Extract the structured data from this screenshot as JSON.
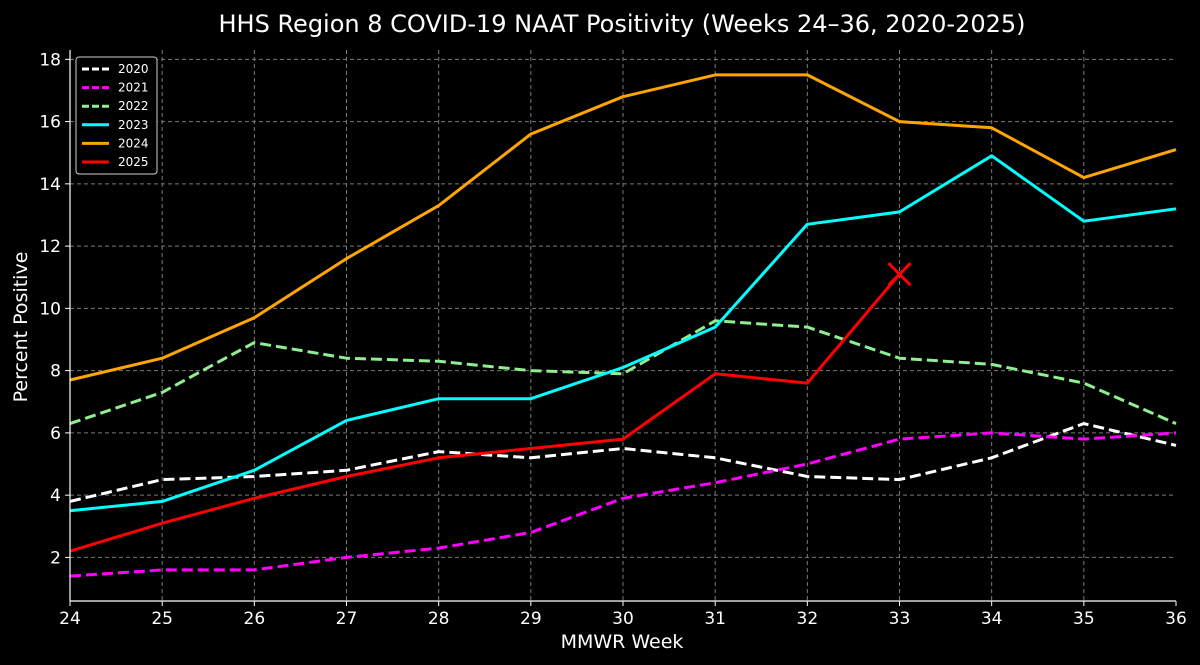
{
  "chart_data": {
    "type": "line",
    "title": "HHS Region 8 COVID-19 NAAT Positivity (Weeks 24–36, 2020-2025)",
    "xlabel": "MMWR Week",
    "ylabel": "Percent Positive",
    "x": [
      24,
      25,
      26,
      27,
      28,
      29,
      30,
      31,
      32,
      33,
      34,
      35,
      36
    ],
    "xlim": [
      24,
      36
    ],
    "ylim": [
      0.6,
      18.3
    ],
    "xticks": [
      "24",
      "25",
      "26",
      "27",
      "28",
      "29",
      "30",
      "31",
      "32",
      "33",
      "34",
      "35",
      "36"
    ],
    "yticks": [
      "2",
      "4",
      "6",
      "8",
      "10",
      "12",
      "14",
      "16",
      "18"
    ],
    "grid": true,
    "legend_position": "top-left",
    "series": [
      {
        "name": "2020",
        "color": "#ffffff",
        "style": "dashed",
        "values": [
          3.8,
          4.5,
          4.6,
          4.8,
          5.4,
          5.2,
          5.5,
          5.2,
          4.6,
          4.5,
          5.2,
          6.3,
          5.6
        ]
      },
      {
        "name": "2021",
        "color": "#ff00ff",
        "style": "dashed",
        "values": [
          1.4,
          1.6,
          1.6,
          2.0,
          2.3,
          2.8,
          3.9,
          4.4,
          5.0,
          5.8,
          6.0,
          5.8,
          6.0
        ]
      },
      {
        "name": "2022",
        "color": "#90ee90",
        "style": "dashed",
        "values": [
          6.3,
          7.3,
          8.9,
          8.4,
          8.3,
          8.0,
          7.9,
          9.6,
          9.4,
          8.4,
          8.2,
          7.6,
          6.3
        ]
      },
      {
        "name": "2023",
        "color": "#00ffff",
        "style": "solid",
        "values": [
          3.5,
          3.8,
          4.8,
          6.4,
          7.1,
          7.1,
          8.1,
          9.4,
          12.7,
          13.1,
          14.9,
          12.8,
          13.2
        ]
      },
      {
        "name": "2024",
        "color": "#ffa500",
        "style": "solid",
        "values": [
          7.7,
          8.4,
          9.7,
          11.6,
          13.3,
          15.6,
          16.8,
          17.5,
          17.5,
          16.0,
          15.8,
          14.2,
          15.1
        ]
      },
      {
        "name": "2025",
        "color": "#ff0000",
        "style": "solid",
        "values": [
          2.2,
          3.1,
          3.9,
          4.6,
          5.2,
          5.5,
          5.8,
          7.9,
          7.6,
          11.1,
          null,
          null,
          null
        ],
        "end_marker": "x"
      }
    ]
  }
}
